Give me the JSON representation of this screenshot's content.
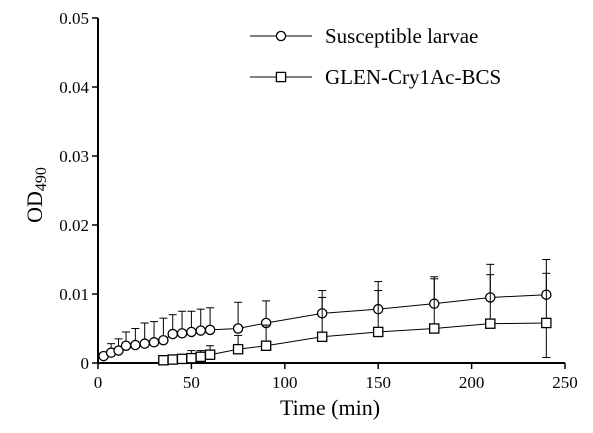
{
  "chart_data": {
    "type": "line",
    "title": "",
    "xlabel": "Time (min)",
    "ylabel": "OD",
    "ylabel_subscript": "490",
    "xlim": [
      0,
      250
    ],
    "ylim": [
      0,
      0.05
    ],
    "xticks": [
      0,
      50,
      100,
      150,
      200,
      250
    ],
    "xtick_labels": [
      "0",
      "50",
      "100",
      "150",
      "200",
      "250"
    ],
    "yticks": [
      0,
      0.01,
      0.02,
      0.03,
      0.04,
      0.05
    ],
    "ytick_labels": [
      "0",
      "0.01",
      "0.02",
      "0.03",
      "0.04",
      "0.05"
    ],
    "grid": false,
    "legend_position": "top-right",
    "series": [
      {
        "name": "Susceptible larvae",
        "marker": "circle",
        "color": "#000000",
        "x": [
          3,
          7,
          11,
          15,
          20,
          25,
          30,
          35,
          40,
          45,
          50,
          55,
          60,
          75,
          90,
          120,
          150,
          180,
          210,
          240
        ],
        "y": [
          0.001,
          0.0015,
          0.0018,
          0.0025,
          0.0026,
          0.0028,
          0.003,
          0.0033,
          0.0042,
          0.0043,
          0.0045,
          0.0047,
          0.0048,
          0.005,
          0.0058,
          0.0072,
          0.0078,
          0.0086,
          0.0095,
          0.0099
        ],
        "error_upper": [
          0.0015,
          0.0028,
          0.0035,
          0.0045,
          0.005,
          0.0058,
          0.006,
          0.0065,
          0.007,
          0.0075,
          0.0075,
          0.0078,
          0.008,
          0.0088,
          0.009,
          0.0105,
          0.0118,
          0.0122,
          0.0143,
          0.015
        ]
      },
      {
        "name": "GLEN-Cry1Ac-BCS",
        "marker": "square",
        "color": "#000000",
        "x": [
          35,
          40,
          45,
          50,
          55,
          60,
          75,
          90,
          120,
          150,
          180,
          210,
          240
        ],
        "y": [
          0.0004,
          0.0005,
          0.0006,
          0.0007,
          0.0009,
          0.0012,
          0.002,
          0.0025,
          0.0038,
          0.0045,
          0.005,
          0.0057,
          0.0058
        ],
        "error_upper": [
          0.0008,
          0.001,
          0.0012,
          0.0018,
          0.0018,
          0.0025,
          0.004,
          0.0055,
          0.0095,
          0.0105,
          0.0125,
          0.0128,
          0.013
        ],
        "error_lower": [
          0,
          0,
          0,
          0,
          0,
          0,
          0,
          0,
          0,
          0,
          0,
          0,
          0.0008
        ]
      }
    ]
  }
}
